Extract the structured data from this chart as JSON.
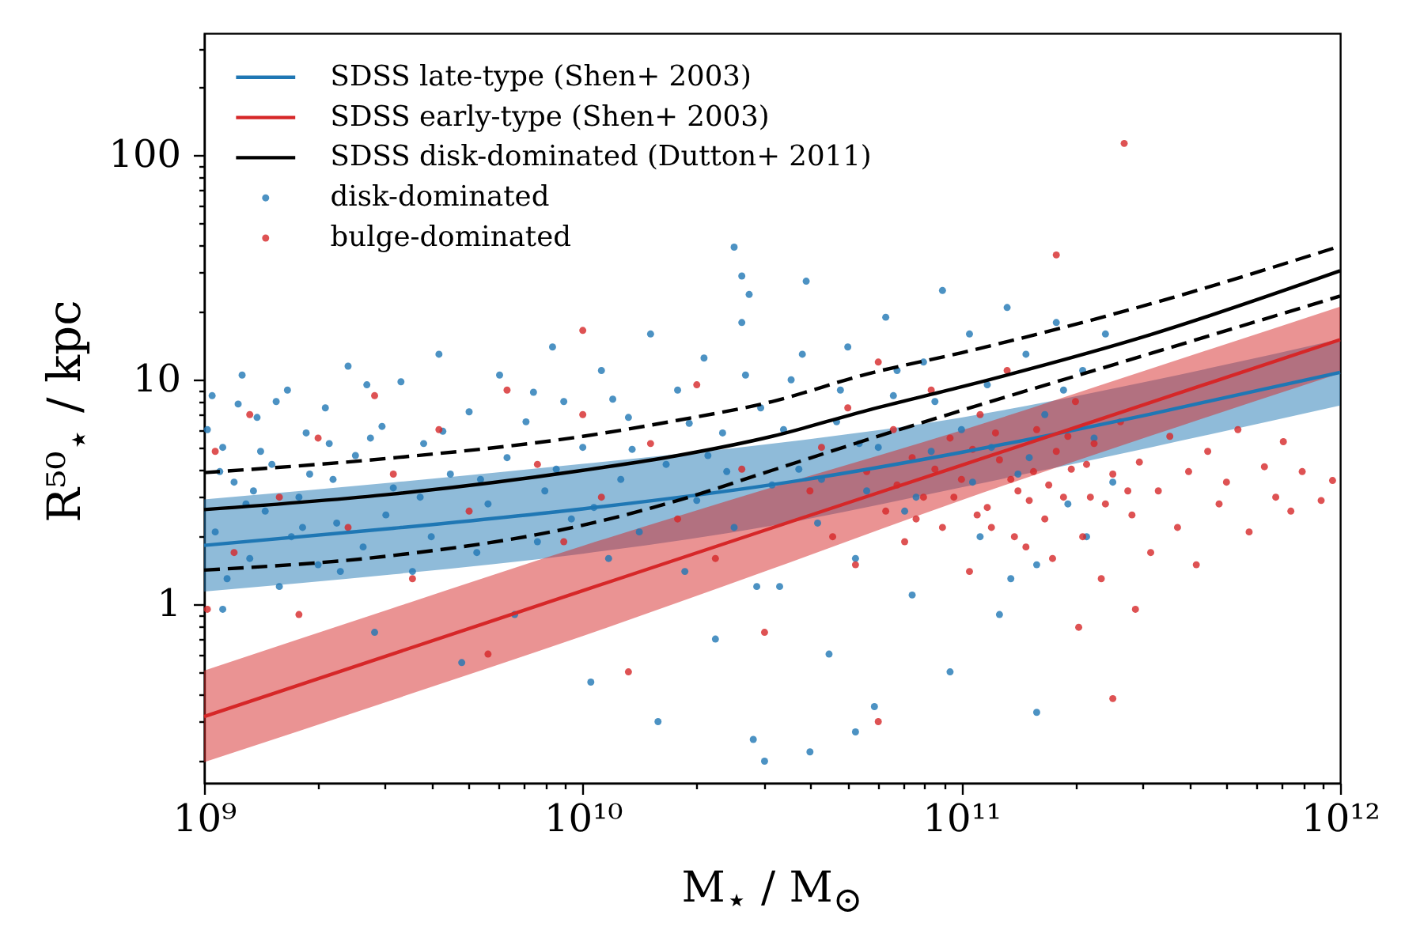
{
  "chart_data": {
    "type": "scatter",
    "xlabel": "M$_{⋆}$ / M$_{⊙}$",
    "ylabel": "R⁵⁰$_{⋆}$ / kpc",
    "log": "xy",
    "xlim": [
      1000000000.0,
      1000000000000.0
    ],
    "ylim": [
      0.16,
      350
    ],
    "xticks": [
      {
        "value": 1000000000.0,
        "label": "10⁹"
      },
      {
        "value": 2000000000.0,
        "label": null
      },
      {
        "value": 3000000000.0,
        "label": null
      },
      {
        "value": 4000000000.0,
        "label": null
      },
      {
        "value": 5000000000.0,
        "label": null
      },
      {
        "value": 6000000000.0,
        "label": null
      },
      {
        "value": 7000000000.0,
        "label": null
      },
      {
        "value": 8000000000.0,
        "label": null
      },
      {
        "value": 9000000000.0,
        "label": null
      },
      {
        "value": 10000000000.0,
        "label": "10¹⁰"
      },
      {
        "value": 20000000000.0,
        "label": null
      },
      {
        "value": 30000000000.0,
        "label": null
      },
      {
        "value": 40000000000.0,
        "label": null
      },
      {
        "value": 50000000000.0,
        "label": null
      },
      {
        "value": 60000000000.0,
        "label": null
      },
      {
        "value": 70000000000.0,
        "label": null
      },
      {
        "value": 80000000000.0,
        "label": null
      },
      {
        "value": 90000000000.0,
        "label": null
      },
      {
        "value": 100000000000.0,
        "label": "10¹¹"
      },
      {
        "value": 200000000000.0,
        "label": null
      },
      {
        "value": 300000000000.0,
        "label": null
      },
      {
        "value": 400000000000.0,
        "label": null
      },
      {
        "value": 500000000000.0,
        "label": null
      },
      {
        "value": 600000000000.0,
        "label": null
      },
      {
        "value": 700000000000.0,
        "label": null
      },
      {
        "value": 800000000000.0,
        "label": null
      },
      {
        "value": 900000000000.0,
        "label": null
      },
      {
        "value": 1000000000000.0,
        "label": "10¹²"
      }
    ],
    "yticks": [
      {
        "value": 0.2,
        "label": null
      },
      {
        "value": 0.3,
        "label": null
      },
      {
        "value": 0.4,
        "label": null
      },
      {
        "value": 0.5,
        "label": null
      },
      {
        "value": 0.6,
        "label": null
      },
      {
        "value": 0.7,
        "label": null
      },
      {
        "value": 0.8,
        "label": null
      },
      {
        "value": 0.9,
        "label": null
      },
      1,
      {
        "value": 2,
        "label": null
      },
      {
        "value": 3,
        "label": null
      },
      {
        "value": 4,
        "label": null
      },
      {
        "value": 5,
        "label": null
      },
      {
        "value": 6,
        "label": null
      },
      {
        "value": 7,
        "label": null
      },
      {
        "value": 8,
        "label": null
      },
      {
        "value": 9,
        "label": null
      },
      10,
      {
        "value": 20,
        "label": null
      },
      {
        "value": 30,
        "label": null
      },
      {
        "value": 40,
        "label": null
      },
      {
        "value": 50,
        "label": null
      },
      {
        "value": 60,
        "label": null
      },
      {
        "value": 70,
        "label": null
      },
      {
        "value": 80,
        "label": null
      },
      {
        "value": 90,
        "label": null
      },
      100,
      {
        "value": 200,
        "label": null
      },
      {
        "value": 300,
        "label": null
      }
    ],
    "legend": "top left",
    "series": [
      {
        "name": "SDSS late-type (Shen+ 2003)",
        "type": "line",
        "color": "#1f77b4",
        "x": [
          1000000000.0,
          3160000000.0,
          10000000000.0,
          31600000000.0,
          100000000000.0,
          316000000000.0,
          1000000000000.0
        ],
        "values": [
          1.83,
          2.18,
          2.66,
          3.41,
          4.75,
          7.04,
          10.8
        ],
        "lower": [
          1.14,
          1.36,
          1.68,
          2.24,
          3.32,
          5.0,
          7.69
        ],
        "upper": [
          2.93,
          3.49,
          4.22,
          5.19,
          6.79,
          9.91,
          15.2
        ]
      },
      {
        "name": "SDSS early-type (Shen+ 2003)",
        "type": "line",
        "color": "#d62728",
        "x": [
          1000000000.0,
          3160000000.0,
          10000000000.0,
          31600000000.0,
          100000000000.0,
          316000000000.0,
          1000000000000.0
        ],
        "values": [
          0.316,
          0.602,
          1.15,
          2.19,
          4.16,
          7.93,
          15.1
        ],
        "lower": [
          0.198,
          0.376,
          0.722,
          1.44,
          2.91,
          5.63,
          10.7
        ],
        "upper": [
          0.506,
          0.963,
          1.82,
          3.32,
          5.95,
          11.2,
          21.2
        ]
      },
      {
        "name": "SDSS disk-dominated (Dutton+ 2011)",
        "type": "line",
        "color": "#000000",
        "x": [
          1000000000.0,
          3160000000.0,
          10000000000.0,
          17800000000.0,
          31600000000.0,
          56200000000.0,
          100000000000.0,
          316000000000.0,
          1000000000000.0
        ],
        "values": [
          2.64,
          3.1,
          3.95,
          4.6,
          5.6,
          7.3,
          9.3,
          15.9,
          30.6
        ]
      },
      {
        "type": "line",
        "color": "#000000",
        "line_style": "dashed",
        "x": [
          1000000000.0,
          3160000000.0,
          10000000000.0,
          17800000000.0,
          31600000000.0,
          56200000000.0,
          100000000000.0,
          316000000000.0,
          1000000000000.0
        ],
        "values": [
          3.86,
          4.49,
          5.6,
          6.6,
          8.0,
          10.6,
          13.2,
          21.8,
          39.4
        ]
      },
      {
        "type": "line",
        "color": "#000000",
        "line_style": "dashed",
        "x": [
          1000000000.0,
          3160000000.0,
          10000000000.0,
          17800000000.0,
          31600000000.0,
          56200000000.0,
          100000000000.0,
          316000000000.0,
          1000000000000.0
        ],
        "values": [
          1.42,
          1.65,
          2.25,
          2.9,
          3.95,
          5.4,
          7.3,
          13.1,
          23.6
        ]
      },
      {
        "name": "disk-dominated",
        "color": "#1f77b4",
        "marker": "circle",
        "x": [
          1050000000.0,
          1070000000.0,
          1120000000.0,
          1150000000.0,
          1200000000.0,
          1260000000.0,
          1320000000.0,
          1380000000.0,
          1450000000.0,
          1510000000.0,
          1580000000.0,
          1660000000.0,
          1780000000.0,
          1860000000.0,
          2000000000.0,
          2090000000.0,
          2240000000.0,
          2400000000.0,
          2510000000.0,
          2630000000.0,
          2820000000.0,
          2950000000.0,
          3160000000.0,
          1120000000.0,
          1020000000.0,
          1100000000.0,
          1230000000.0,
          1290000000.0,
          1410000000.0,
          1550000000.0,
          1700000000.0,
          1900000000.0,
          2140000000.0,
          2290000000.0,
          2690000000.0,
          3020000000.0,
          3310000000.0,
          3550000000.0,
          3800000000.0,
          3980000000.0,
          4170000000.0,
          4470000000.0,
          4790000000.0,
          5010000000.0,
          5250000000.0,
          5620000000.0,
          6030000000.0,
          6310000000.0,
          6610000000.0,
          7080000000.0,
          7590000000.0,
          7940000000.0,
          8320000000.0,
          8910000000.0,
          9330000000.0,
          10000000000.0,
          10500000000.0,
          11200000000.0,
          11700000000.0,
          12600000000.0,
          13200000000.0,
          14100000000.0,
          15100000000.0,
          15800000000.0,
          16600000000.0,
          17800000000.0,
          18600000000.0,
          20000000000.0,
          20900000000.0,
          22400000000.0,
          23400000000.0,
          25100000000.0,
          26300000000.0,
          28200000000.0,
          29500000000.0,
          31600000000.0,
          25100000000.0,
          26300000000.0,
          27500000000.0,
          4270000000.0,
          5370000000.0,
          7410000000.0,
          10700000000.0,
          13500000000.0,
          19100000000.0,
          24000000000.0,
          28800000000.0,
          33100000000.0,
          35500000000.0,
          37200000000.0,
          38900000000.0,
          39800000000.0,
          41700000000.0,
          44700000000.0,
          46800000000.0,
          50100000000.0,
          52500000000.0,
          56200000000.0,
          58900000000.0,
          63100000000.0,
          66100000000.0,
          70800000000.0,
          74100000000.0,
          79400000000.0,
          83200000000.0,
          89100000000.0,
          93300000000.0,
          100000000000.0,
          105000000000.0,
          112000000000.0,
          117000000000.0,
          126000000000.0,
          132000000000.0,
          141000000000.0,
          148000000000.0,
          158000000000.0,
          166000000000.0,
          178000000000.0,
          191000000000.0,
          158000000000.0,
          209000000000.0,
          224000000000.0,
          240000000000.0,
          251000000000.0,
          30200000000.0,
          52500000000.0,
          33900000000.0,
          42700000000.0,
          47900000000.0,
          60300000000.0,
          75900000000.0,
          85100000000.0,
          107000000000.0,
          120000000000.0,
          135000000000.0,
          151000000000.0,
          186000000000.0,
          214000000000.0,
          1350000000.0,
          1820000000.0,
          2190000000.0,
          2750000000.0,
          3720000000.0,
          8510000000.0,
          12000000000.0,
          21400000000.0,
          26900000000.0,
          38000000000.0,
          53700000000.0,
          67600000000.0
        ],
        "values": [
          8.5,
          2.1,
          5.0,
          1.3,
          3.5,
          10.5,
          1.6,
          6.8,
          2.6,
          4.2,
          1.2,
          9.0,
          3.0,
          5.8,
          1.5,
          7.5,
          2.3,
          11.5,
          4.6,
          1.8,
          0.75,
          6.2,
          3.3,
          0.95,
          6.0,
          3.9,
          7.8,
          2.8,
          4.8,
          8.0,
          2.0,
          3.8,
          5.2,
          1.4,
          9.5,
          2.5,
          9.8,
          1.4,
          5.2,
          2.0,
          13,
          3.8,
          0.55,
          7.2,
          1.7,
          2.8,
          10.5,
          4.5,
          0.9,
          6.5,
          1.9,
          3.2,
          14,
          8.0,
          2.4,
          5.0,
          0.45,
          11,
          1.6,
          3.6,
          6.8,
          2.1,
          16,
          0.3,
          4.2,
          9.0,
          1.4,
          2.9,
          12.5,
          0.7,
          5.8,
          2.2,
          18,
          0.25,
          7.5,
          3.4,
          39,
          29,
          24,
          5.9,
          3.6,
          8.8,
          2.7,
          4.9,
          6.4,
          3.9,
          1.2,
          1.2,
          10,
          4.0,
          27.5,
          0.22,
          2.3,
          0.6,
          6.5,
          14,
          1.6,
          3.2,
          0.35,
          19,
          8.5,
          2.6,
          1.1,
          12,
          4.8,
          25,
          0.5,
          6.0,
          16,
          2.0,
          9.5,
          0.9,
          21,
          3.8,
          13,
          1.5,
          7.0,
          18,
          2.8,
          0.33,
          11,
          5.5,
          16,
          3.5,
          0.2,
          0.27,
          6.0,
          3.6,
          9.0,
          5.0,
          3.0,
          8.0,
          3.5,
          5.0,
          1.3,
          4.5,
          9.0,
          2.0,
          3.2,
          2.2,
          3.6,
          5.5,
          3.0,
          4.0,
          8.2,
          4.6,
          10.5,
          13,
          5.2,
          11
        ]
      },
      {
        "name": "bulge-dominated",
        "color": "#d62728",
        "marker": "circle",
        "x": [
          1020000000.0,
          1070000000.0,
          1200000000.0,
          1320000000.0,
          1580000000.0,
          1780000000.0,
          2000000000.0,
          2400000000.0,
          2820000000.0,
          3160000000.0,
          3550000000.0,
          4170000000.0,
          5010000000.0,
          5620000000.0,
          6310000000.0,
          7590000000.0,
          8910000000.0,
          10000000000.0,
          10000000000.0,
          11200000000.0,
          13200000000.0,
          15100000000.0,
          17800000000.0,
          20000000000.0,
          22400000000.0,
          26300000000.0,
          30200000000.0,
          39800000000.0,
          42700000000.0,
          45700000000.0,
          50100000000.0,
          52500000000.0,
          56200000000.0,
          60300000000.0,
          60300000000.0,
          63100000000.0,
          66100000000.0,
          70800000000.0,
          74100000000.0,
          79400000000.0,
          83200000000.0,
          89100000000.0,
          93300000000.0,
          100000000000.0,
          105000000000.0,
          112000000000.0,
          117000000000.0,
          126000000000.0,
          132000000000.0,
          141000000000.0,
          148000000000.0,
          158000000000.0,
          166000000000.0,
          178000000000.0,
          178000000000.0,
          186000000000.0,
          200000000000.0,
          204000000000.0,
          209000000000.0,
          224000000000.0,
          234000000000.0,
          251000000000.0,
          251000000000.0,
          263000000000.0,
          269000000000.0,
          282000000000.0,
          288000000000.0,
          295000000000.0,
          316000000000.0,
          331000000000.0,
          355000000000.0,
          372000000000.0,
          398000000000.0,
          417000000000.0,
          447000000000.0,
          479000000000.0,
          501000000000.0,
          537000000000.0,
          575000000000.0,
          631000000000.0,
          676000000000.0,
          708000000000.0,
          741000000000.0,
          794000000000.0,
          891000000000.0,
          955000000000.0,
          75900000000.0,
          95500000000.0,
          107000000000.0,
          120000000000.0,
          135000000000.0,
          151000000000.0,
          170000000000.0,
          191000000000.0,
          214000000000.0,
          240000000000.0,
          67600000000.0,
          85100000000.0,
          110000000000.0,
          123000000000.0,
          138000000000.0,
          155000000000.0,
          174000000000.0,
          195000000000.0,
          219000000000.0,
          275000000000.0
        ],
        "values": [
          0.95,
          4.8,
          1.7,
          7.0,
          3.0,
          0.9,
          5.5,
          2.2,
          8.5,
          3.8,
          1.3,
          6.0,
          2.6,
          0.6,
          9.0,
          4.2,
          1.9,
          7.0,
          16.6,
          3.0,
          0.5,
          5.2,
          2.4,
          9.5,
          1.6,
          4.0,
          0.75,
          3.2,
          5.0,
          2.0,
          7.5,
          1.5,
          3.9,
          12,
          0.3,
          2.6,
          6.0,
          1.9,
          4.5,
          3.0,
          9.0,
          2.2,
          5.5,
          3.6,
          1.4,
          7.0,
          2.7,
          4.4,
          11,
          3.2,
          1.8,
          6.0,
          2.4,
          4.8,
          36,
          3.0,
          8.0,
          0.79,
          2.0,
          5.2,
          1.3,
          3.8,
          0.38,
          6.5,
          113,
          2.5,
          0.95,
          4.3,
          1.7,
          3.2,
          5.6,
          2.2,
          3.9,
          1.5,
          4.8,
          2.8,
          3.5,
          6.0,
          2.1,
          4.1,
          3.0,
          5.3,
          2.6,
          3.9,
          2.9,
          3.56,
          2.4,
          3.0,
          4.9,
          2.2,
          3.6,
          2.9,
          3.4,
          5.6,
          4.2,
          2.8,
          3.4,
          4.0,
          2.5,
          5.8,
          2.0,
          3.9,
          1.6,
          4.0,
          3.0,
          3.2
        ]
      }
    ]
  }
}
